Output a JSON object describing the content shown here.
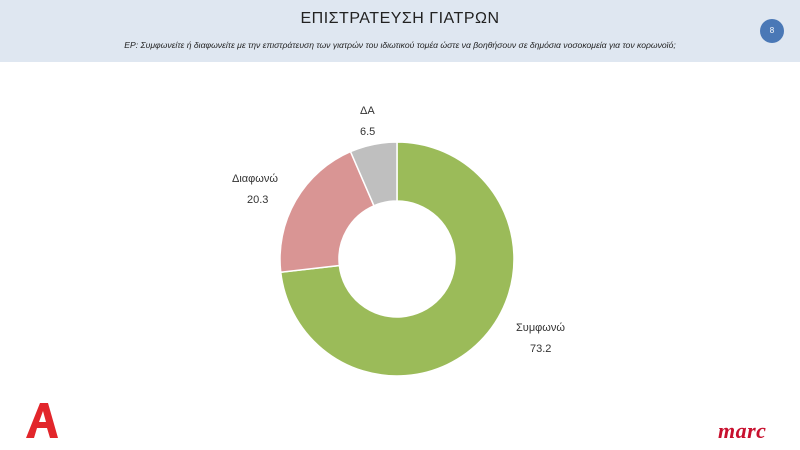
{
  "header": {
    "title": "ΕΠΙΣΤΡΑΤΕΥΣΗ ΓΙΑΤΡΩΝ",
    "question": "ΕΡ: Συμφωνείτε ή διαφωνείτε με την επιστράτευση των γιατρών του ιδιωτικού τομέα ώστε να βοηθήσουν σε δημόσια νοσοκομεία για τον κορωνοϊό;",
    "page_number": "8",
    "badge_color": "#4a78b6",
    "band_color": "#dfe7f1"
  },
  "chart_data": {
    "type": "pie",
    "donut": true,
    "labels": [
      "Συμφωνώ",
      "Διαφωνώ",
      "ΔΑ"
    ],
    "values": [
      73.2,
      20.3,
      6.5
    ],
    "value_labels": [
      "73.2",
      "20.3",
      "6.5"
    ],
    "colors": [
      "#9bbb59",
      "#d99594",
      "#bfbfbf"
    ],
    "start_angle_deg": 0,
    "direction": "clockwise",
    "legend": "none"
  },
  "logos": {
    "alpha": {
      "icon": "alpha-channel-logo-icon",
      "color": "#e2262b"
    },
    "marc": {
      "text": "marc",
      "color": "#c8102e"
    }
  }
}
